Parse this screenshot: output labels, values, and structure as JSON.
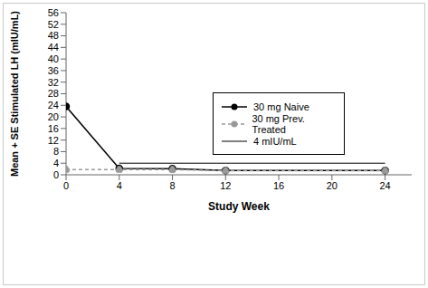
{
  "chart_data": {
    "type": "line",
    "x": [
      0,
      4,
      8,
      12,
      24
    ],
    "series": [
      {
        "name": "30 mg Naive",
        "color": "#000000",
        "marker": "circle",
        "line_style": "solid",
        "values": [
          23.6,
          2.2,
          2.1,
          1.5,
          1.5
        ]
      },
      {
        "name": "30 mg Prev. Treated",
        "color": "#999999",
        "marker": "circle",
        "line_style": "dashed",
        "values": [
          1.8,
          1.8,
          1.8,
          1.4,
          1.4
        ]
      },
      {
        "name": "4 mIU/mL",
        "color": "#000000",
        "marker": "none",
        "line_style": "solid",
        "values": [
          null,
          4,
          4,
          4,
          4
        ]
      }
    ],
    "x_label": "Study Week",
    "y_label": "Mean + SE Stimulated LH (mIU/mL)",
    "xlim": [
      0,
      26
    ],
    "ylim": [
      0,
      56
    ],
    "xticks": [
      0,
      4,
      8,
      12,
      16,
      20,
      24
    ],
    "yticks": [
      0,
      4,
      8,
      12,
      16,
      20,
      24,
      28,
      32,
      36,
      40,
      44,
      48,
      52,
      56
    ],
    "grid": false,
    "legend": "right"
  }
}
